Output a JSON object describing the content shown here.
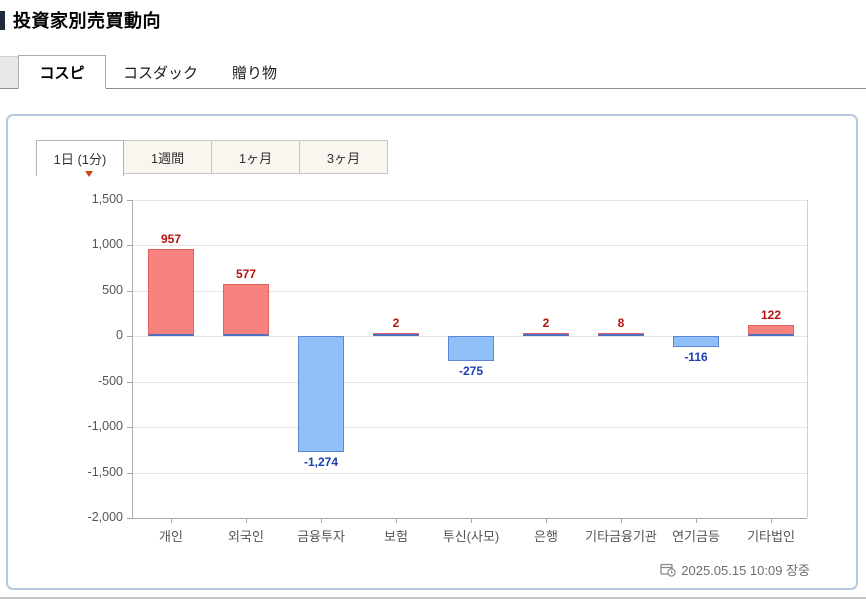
{
  "header": {
    "title": "投資家別売買動向"
  },
  "market_tabs": {
    "items": [
      {
        "label": "コスピ",
        "active": true
      },
      {
        "label": "コスダック",
        "active": false
      },
      {
        "label": "贈り物",
        "active": false
      }
    ]
  },
  "period_tabs": {
    "items": [
      {
        "label": "1日 (1分)",
        "active": true
      },
      {
        "label": "1週間",
        "active": false
      },
      {
        "label": "1ヶ月",
        "active": false
      },
      {
        "label": "3ヶ月",
        "active": false
      }
    ]
  },
  "chart_data": {
    "type": "bar",
    "categories": [
      "개인",
      "외국인",
      "금융투자",
      "보험",
      "투신(사모)",
      "은행",
      "기타금융기관",
      "연기금등",
      "기타법인"
    ],
    "values": [
      957,
      577,
      -1274,
      2,
      -275,
      2,
      8,
      -116,
      122
    ],
    "value_labels": [
      "957",
      "577",
      "-1,274",
      "2",
      "-275",
      "2",
      "8",
      "-116",
      "122"
    ],
    "title": "",
    "xlabel": "",
    "ylabel": "",
    "ylim": [
      -2000,
      1500
    ],
    "ytick_step": 500,
    "ytick_labels": [
      "1,500",
      "1,000",
      "500",
      "0",
      "-500",
      "-1,000",
      "-1,500",
      "-2,000"
    ],
    "grid": true,
    "legend": "none",
    "positive_color": "#f8837e",
    "positive_border_color": "#e0605c",
    "negative_color": "#8fc1f8",
    "negative_border_color": "#5c86d5",
    "positive_label_color": "#b5120f",
    "negative_label_color": "#1a3fb0"
  },
  "footer": {
    "timestamp": "2025.05.15 10:09 장중"
  }
}
